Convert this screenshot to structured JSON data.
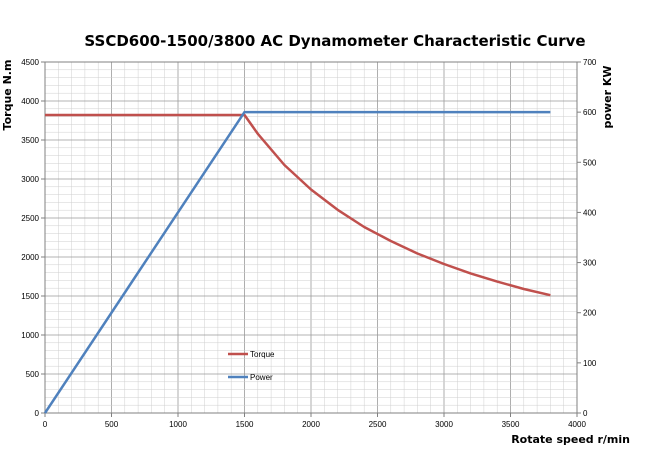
{
  "chart_data": {
    "type": "line",
    "title": "SSCD600-1500/3800 AC Dynamometer Characteristic Curve",
    "xlabel": "Rotate speed r/min",
    "ylabel_left": "Torque N.m",
    "ylabel_right": "power KW",
    "xlim": [
      0,
      4000
    ],
    "ylim_left": [
      0,
      4500
    ],
    "ylim_right": [
      0,
      700
    ],
    "x_ticks": [
      0,
      500,
      1000,
      1500,
      2000,
      2500,
      3000,
      3500,
      4000
    ],
    "y_ticks_left": [
      0,
      500,
      1000,
      1500,
      2000,
      2500,
      3000,
      3500,
      4000,
      4500
    ],
    "y_ticks_right": [
      0,
      100,
      200,
      300,
      400,
      500,
      600,
      700
    ],
    "grid": true,
    "legend_position": "center-left",
    "series": [
      {
        "name": "Torque",
        "axis": "left",
        "color": "#c0504d",
        "x": [
          0,
          1500,
          1600,
          1800,
          2000,
          2200,
          2400,
          2600,
          2800,
          3000,
          3200,
          3400,
          3600,
          3800
        ],
        "y": [
          3820,
          3820,
          3580,
          3180,
          2865,
          2605,
          2385,
          2205,
          2045,
          1910,
          1790,
          1685,
          1590,
          1510
        ]
      },
      {
        "name": "Power",
        "axis": "right",
        "color": "#4f81bd",
        "x": [
          0,
          1500,
          3800
        ],
        "y": [
          0,
          600,
          600
        ]
      }
    ]
  }
}
